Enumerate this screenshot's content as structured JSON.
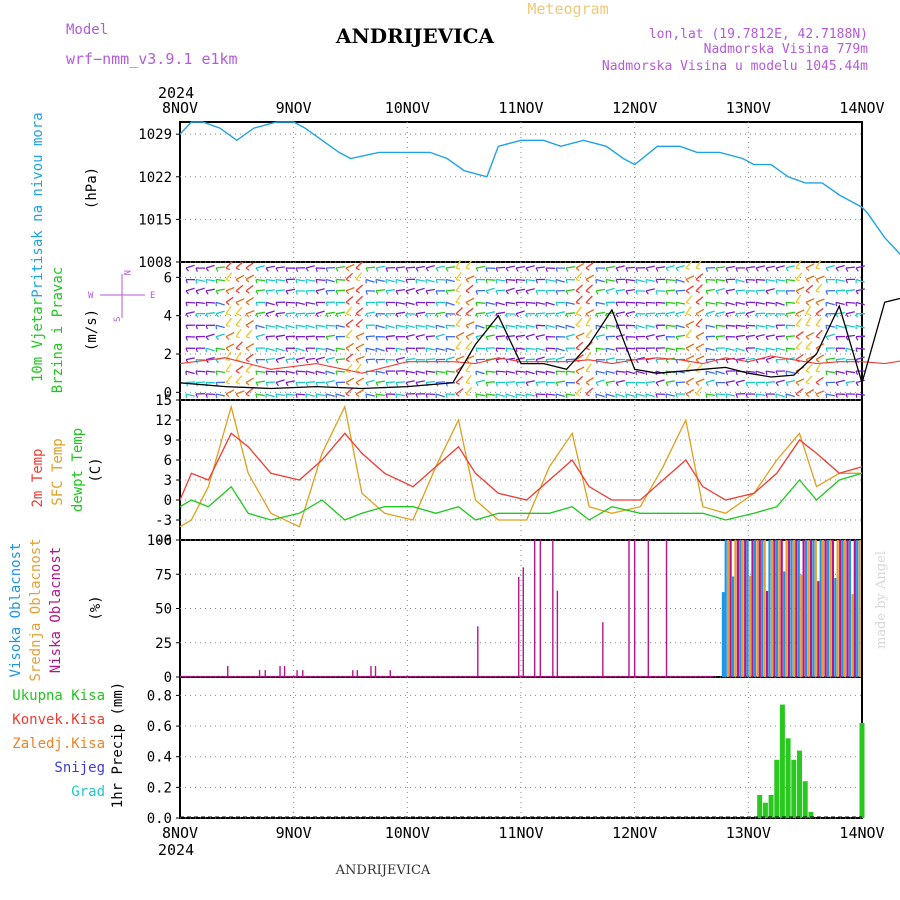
{
  "header": {
    "model_label": "Model",
    "model_name": "wrf−nmm_v3.9.1  e1km",
    "station": "ANDRIJEVICA",
    "meteogram": "Meteogram",
    "lonlat": "lon,lat (19.7812E, 42.7188N)",
    "altitude": "Nadmorska Visina 779m",
    "model_altitude": "Nadmorska Visina u modelu 1045.44m",
    "year_top": "2024",
    "year_bottom": "2024",
    "footer_station": "ANDRIJEVICA",
    "watermark": "made by Angel"
  },
  "x_axis": {
    "dates": [
      "8NOV",
      "9NOV",
      "10NOV",
      "11NOV",
      "12NOV",
      "13NOV",
      "14NOV"
    ]
  },
  "labels": {
    "pressure": {
      "name": "Pritisak na nivou mora",
      "unit": "(hPa)"
    },
    "wind": {
      "name1": "10m Vjetar",
      "name2": "Brzina i Pravac",
      "unit": "(m/s)"
    },
    "temp": {
      "name1": "2m Temp",
      "name2": "SFC Temp",
      "name3": "dewpt Temp",
      "unit": "(C)"
    },
    "cloud": {
      "high": "Visoka Oblacnost",
      "mid": "Srednja Oblacnost",
      "low": "Niska Oblacnost",
      "unit": "(%)"
    },
    "precip": {
      "total": "Ukupna Kisa",
      "conv": "Konvek.Kisa",
      "frz": "Zaledj.Kisa",
      "snow": "Snijeg",
      "hail": "Grad",
      "unit": "1hr Precip (mm)"
    }
  },
  "compass": {
    "w": "W",
    "e": "E",
    "n": "N",
    "s": "S"
  },
  "colors": {
    "pressure": "#1fa3e6",
    "temp2m": "#f03c32",
    "sfc": "#e0a020",
    "dewpt": "#1ec81e",
    "wind_speed": "#000000",
    "wind_gust": "#f03c32",
    "cloud_high": "#1e96e6",
    "cloud_mid": "#e6a032",
    "cloud_low": "#b4148c",
    "precip_total": "#28c81e",
    "title_gold": "#f0c878",
    "purple": "#b45adc"
  },
  "chart_data": [
    {
      "type": "line",
      "title": "Pritisak na nivou mora",
      "ylabel": "(hPa)",
      "ylim": [
        1008,
        1031
      ],
      "yticks": [
        1008,
        1015,
        1022,
        1029
      ],
      "x_days": [
        0,
        0.1,
        0.2,
        0.35,
        0.5,
        0.65,
        0.85,
        1,
        1.1,
        1.25,
        1.4,
        1.5,
        1.75,
        2,
        2.2,
        2.35,
        2.5,
        2.7,
        2.8,
        3,
        3.2,
        3.35,
        3.55,
        3.75,
        3.9,
        4,
        4.2,
        4.4,
        4.55,
        4.75,
        4.95,
        5.05,
        5.2,
        5.35,
        5.5,
        5.65,
        5.8,
        5.9,
        6,
        6.05,
        6.2,
        6.4
      ],
      "series": [
        {
          "name": "Pritisak",
          "values": [
            1029,
            1031,
            1031,
            1030,
            1028,
            1030,
            1031,
            1031,
            1030,
            1028,
            1026,
            1025,
            1026,
            1026,
            1026,
            1025,
            1023,
            1022,
            1027,
            1028,
            1028,
            1027,
            1028,
            1027,
            1025,
            1024,
            1027,
            1027,
            1026,
            1026,
            1025,
            1024,
            1024,
            1022,
            1021,
            1021,
            1019,
            1018,
            1017,
            1016,
            1012,
            1008
          ]
        }
      ]
    },
    {
      "type": "line",
      "title": "10m Vjetar Brzina i Pravac",
      "ylabel": "(m/s)",
      "ylim": [
        -0.4,
        6.8
      ],
      "yticks": [
        0,
        2,
        4,
        6
      ],
      "x_days": [
        0,
        0.4,
        0.8,
        1.2,
        1.6,
        2,
        2.4,
        2.6,
        2.8,
        3,
        3.2,
        3.4,
        3.6,
        3.8,
        4,
        4.2,
        4.4,
        4.6,
        4.8,
        5,
        5.2,
        5.4,
        5.6,
        5.8,
        6,
        6.2,
        6.4
      ],
      "series": [
        {
          "name": "speed",
          "values": [
            0.5,
            0.3,
            0.2,
            0.3,
            0.2,
            0.3,
            0.5,
            2.5,
            4.0,
            1.5,
            1.5,
            1.2,
            2.5,
            4.3,
            1.2,
            1.0,
            1.1,
            1.2,
            1.3,
            1.0,
            0.8,
            0.9,
            2.0,
            4.5,
            0.5,
            4.7,
            5.0
          ]
        },
        {
          "name": "gust",
          "values": [
            1.5,
            1.8,
            1.2,
            1.5,
            1.0,
            1.6,
            1.6,
            1.5,
            1.8,
            1.6,
            1.6,
            1.6,
            1.7,
            1.5,
            1.7,
            1.8,
            1.7,
            1.5,
            1.8,
            1.6,
            1.9,
            1.7,
            1.5,
            1.6,
            1.6,
            1.5,
            1.7
          ]
        }
      ]
    },
    {
      "type": "line",
      "title": "2m Temp / SFC Temp / dewpt Temp",
      "ylabel": "(C)",
      "ylim": [
        -6,
        15
      ],
      "yticks": [
        -6,
        -3,
        0,
        3,
        6,
        9,
        12,
        15
      ],
      "x_days": [
        0,
        0.1,
        0.25,
        0.45,
        0.6,
        0.8,
        1.05,
        1.25,
        1.45,
        1.6,
        1.8,
        2.05,
        2.25,
        2.45,
        2.6,
        2.8,
        3.05,
        3.25,
        3.45,
        3.6,
        3.8,
        4.05,
        4.25,
        4.45,
        4.6,
        4.8,
        5.05,
        5.25,
        5.45,
        5.6,
        5.8,
        6
      ],
      "series": [
        {
          "name": "2m Temp",
          "values": [
            0,
            4,
            3,
            10,
            8,
            4,
            3,
            6,
            10,
            7,
            4,
            2,
            5,
            8,
            4,
            1,
            0,
            3,
            6,
            2,
            0,
            0,
            3,
            6,
            2,
            0,
            1,
            4,
            9,
            7,
            4,
            5
          ]
        },
        {
          "name": "SFC Temp",
          "values": [
            -4,
            -3,
            2,
            14,
            4,
            -2,
            -4,
            7,
            14,
            1,
            -2,
            -3,
            5,
            12,
            0,
            -3,
            -3,
            5,
            10,
            -1,
            -2,
            -1,
            5,
            12,
            -1,
            -2,
            1,
            6,
            10,
            2,
            4,
            4
          ]
        },
        {
          "name": "dewpt Temp",
          "values": [
            -1,
            0,
            -1,
            2,
            -2,
            -3,
            -2,
            0,
            -3,
            -2,
            -1,
            -1,
            -2,
            -1,
            -3,
            -2,
            -2,
            -2,
            -1,
            -3,
            -1,
            -2,
            -2,
            -2,
            -2,
            -3,
            -2,
            -1,
            3,
            0,
            3,
            4
          ]
        }
      ]
    },
    {
      "type": "bar",
      "title": "Oblacnost",
      "ylabel": "(%)",
      "ylim": [
        0,
        100
      ],
      "yticks": [
        0,
        25,
        50,
        75,
        100
      ],
      "series": [
        {
          "name": "Niska Oblacnost",
          "x_days": [
            0.42,
            0.7,
            0.75,
            0.88,
            0.92,
            1.03,
            1.08,
            1.52,
            1.56,
            1.68,
            1.72,
            1.85,
            2.62,
            2.98,
            3.02,
            3.12,
            3.17,
            3.28,
            3.32,
            3.72,
            3.95,
            4.0,
            4.12,
            4.28
          ],
          "values": [
            8,
            5,
            5,
            8,
            8,
            5,
            5,
            5,
            5,
            8,
            8,
            5,
            37,
            73,
            80,
            100,
            100,
            100,
            63,
            40,
            100,
            100,
            100,
            100
          ]
        },
        {
          "name": "Visoka Oblacnost",
          "x_days": [
            4.78
          ],
          "values": [
            62
          ]
        }
      ]
    },
    {
      "type": "bar",
      "title": "1hr Precip",
      "ylabel": "1hr Precip (mm)",
      "ylim": [
        0,
        0.92
      ],
      "yticks": [
        0,
        0.2,
        0.4,
        0.6,
        0.8
      ],
      "x_days": [
        5.1,
        5.15,
        5.2,
        5.25,
        5.3,
        5.35,
        5.4,
        5.45,
        5.5,
        5.55,
        6.0
      ],
      "series": [
        {
          "name": "Ukupna Kisa",
          "values": [
            0.15,
            0.1,
            0.15,
            0.38,
            0.74,
            0.52,
            0.38,
            0.44,
            0.24,
            0.04,
            0.62
          ]
        }
      ]
    }
  ]
}
